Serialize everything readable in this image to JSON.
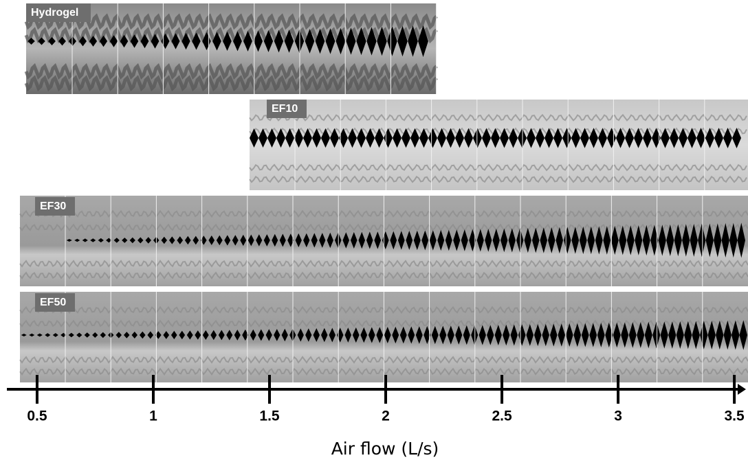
{
  "panels": [
    {
      "label": "Hydrogel"
    },
    {
      "label": "EF10"
    },
    {
      "label": "EF30"
    },
    {
      "label": "EF50"
    }
  ],
  "axis": {
    "label": "Air flow (L/s)",
    "xlim": [
      0.37,
      3.55
    ],
    "xticks": [
      0.5,
      1,
      1.5,
      2,
      2.5,
      3,
      3.5
    ]
  }
}
